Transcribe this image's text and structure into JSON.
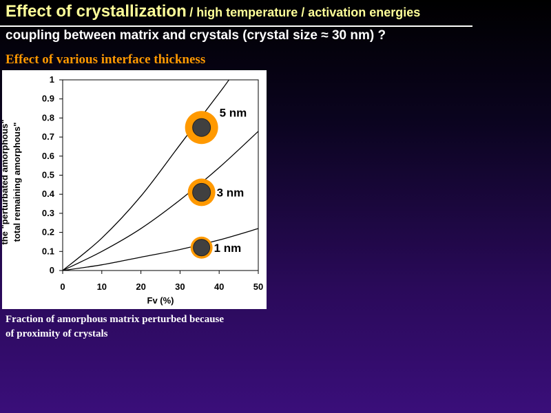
{
  "header": {
    "title": "Effect of crystallization",
    "title_suffix": "/ high temperature / activation energies",
    "subtitle": "coupling between matrix and crystals (crystal size ≈ 30 nm) ?",
    "section": "Effect  of various interface thickness"
  },
  "caption": {
    "line1": "Fraction of amorphous matrix perturbed because",
    "line2": "of proximity of crystals"
  },
  "colors": {
    "title": "#ffff99",
    "section": "#ff9900",
    "crystal_shell": "#ff9900",
    "crystal_core": "#404040"
  },
  "chart_data": {
    "type": "line",
    "xlabel": "Fv (%)",
    "ylabel_lines": [
      "the \"perturbated amorphous\"",
      "total remaining amorphous\""
    ],
    "xlim": [
      0,
      50
    ],
    "ylim": [
      0,
      1
    ],
    "xticks": [
      0,
      10,
      20,
      30,
      40,
      50
    ],
    "yticks": [
      0,
      0.1,
      0.2,
      0.3,
      0.4,
      0.5,
      0.6,
      0.7,
      0.8,
      0.9,
      1
    ],
    "series": [
      {
        "name": "5 nm",
        "x": [
          0,
          10,
          20,
          30,
          40,
          42.5
        ],
        "y": [
          0,
          0.17,
          0.39,
          0.66,
          0.93,
          1.0
        ]
      },
      {
        "name": "3 nm",
        "x": [
          0,
          10,
          20,
          30,
          40,
          50
        ],
        "y": [
          0,
          0.1,
          0.22,
          0.37,
          0.54,
          0.73
        ]
      },
      {
        "name": "1 nm",
        "x": [
          0,
          10,
          20,
          30,
          40,
          50
        ],
        "y": [
          0,
          0.03,
          0.07,
          0.11,
          0.16,
          0.22
        ]
      }
    ],
    "markers": [
      {
        "label": "5 nm",
        "x": 35.5,
        "y": 0.75,
        "shell": "thick"
      },
      {
        "label": "3 nm",
        "x": 35.5,
        "y": 0.41,
        "shell": "medium"
      },
      {
        "label": "1 nm",
        "x": 35.5,
        "y": 0.12,
        "shell": "thin"
      }
    ],
    "grid": false,
    "legend": "none"
  }
}
